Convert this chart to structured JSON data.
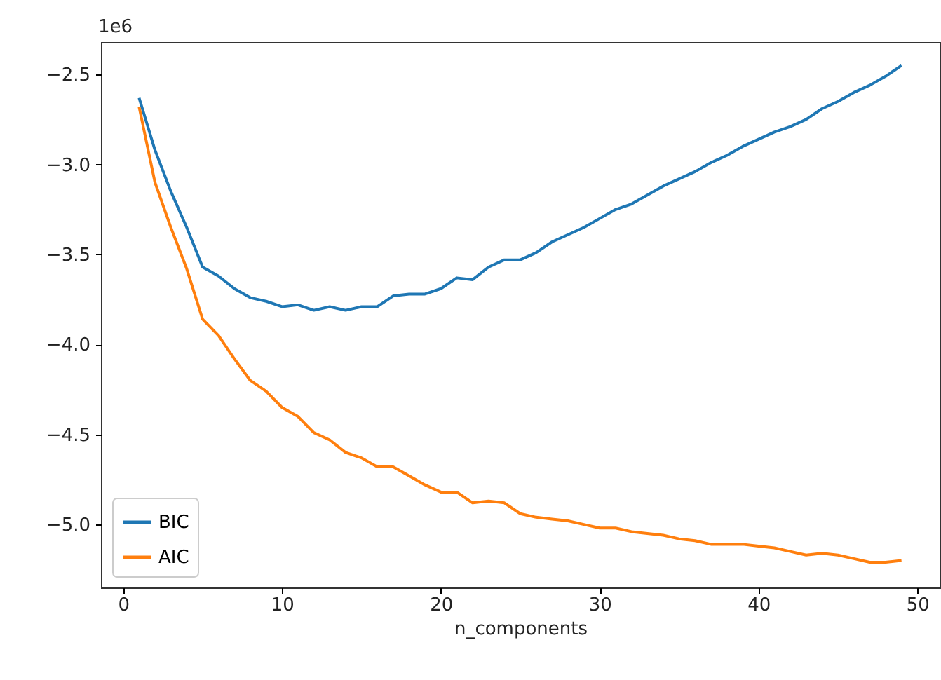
{
  "chart_data": {
    "type": "line",
    "xlabel": "n_components",
    "annotations": [
      "1e6"
    ],
    "x": [
      1,
      2,
      3,
      4,
      5,
      6,
      7,
      8,
      9,
      10,
      11,
      12,
      13,
      14,
      15,
      16,
      17,
      18,
      19,
      20,
      21,
      22,
      23,
      24,
      25,
      26,
      27,
      28,
      29,
      30,
      31,
      32,
      33,
      34,
      35,
      36,
      37,
      38,
      39,
      40,
      41,
      42,
      43,
      44,
      45,
      46,
      47,
      48,
      49
    ],
    "series": [
      {
        "name": "BIC",
        "color": "#1f77b4",
        "values": [
          -2.63,
          -2.92,
          -3.15,
          -3.35,
          -3.57,
          -3.62,
          -3.69,
          -3.74,
          -3.76,
          -3.79,
          -3.78,
          -3.81,
          -3.79,
          -3.81,
          -3.79,
          -3.79,
          -3.73,
          -3.72,
          -3.72,
          -3.69,
          -3.63,
          -3.64,
          -3.57,
          -3.53,
          -3.53,
          -3.49,
          -3.43,
          -3.39,
          -3.35,
          -3.3,
          -3.25,
          -3.22,
          -3.17,
          -3.12,
          -3.08,
          -3.04,
          -2.99,
          -2.95,
          -2.9,
          -2.86,
          -2.82,
          -2.79,
          -2.75,
          -2.69,
          -2.65,
          -2.6,
          -2.56,
          -2.51,
          -2.45
        ]
      },
      {
        "name": "AIC",
        "color": "#ff7f0e",
        "values": [
          -2.68,
          -3.1,
          -3.35,
          -3.58,
          -3.86,
          -3.95,
          -4.08,
          -4.2,
          -4.26,
          -4.35,
          -4.4,
          -4.49,
          -4.53,
          -4.6,
          -4.63,
          -4.68,
          -4.68,
          -4.73,
          -4.78,
          -4.82,
          -4.82,
          -4.88,
          -4.87,
          -4.88,
          -4.94,
          -4.96,
          -4.97,
          -4.98,
          -5.0,
          -5.02,
          -5.02,
          -5.04,
          -5.05,
          -5.06,
          -5.08,
          -5.09,
          -5.11,
          -5.11,
          -5.11,
          -5.12,
          -5.13,
          -5.15,
          -5.17,
          -5.16,
          -5.17,
          -5.19,
          -5.21,
          -5.21,
          -5.2
        ]
      }
    ],
    "xlim": [
      -1.4,
      51.4
    ],
    "xticks": [
      0,
      10,
      20,
      30,
      40,
      50
    ],
    "ylim": [
      -5.35,
      -2.32
    ],
    "yticks": [
      {
        "value": -5.0,
        "label": "−5.0"
      },
      {
        "value": -4.5,
        "label": "−4.5"
      },
      {
        "value": -4.0,
        "label": "−4.0"
      },
      {
        "value": -3.5,
        "label": "−3.5"
      },
      {
        "value": -3.0,
        "label": "−3.0"
      },
      {
        "value": -2.5,
        "label": "−2.5"
      }
    ],
    "legend": "bottom left",
    "grid": false,
    "line_style": "solid",
    "marker": "none"
  }
}
